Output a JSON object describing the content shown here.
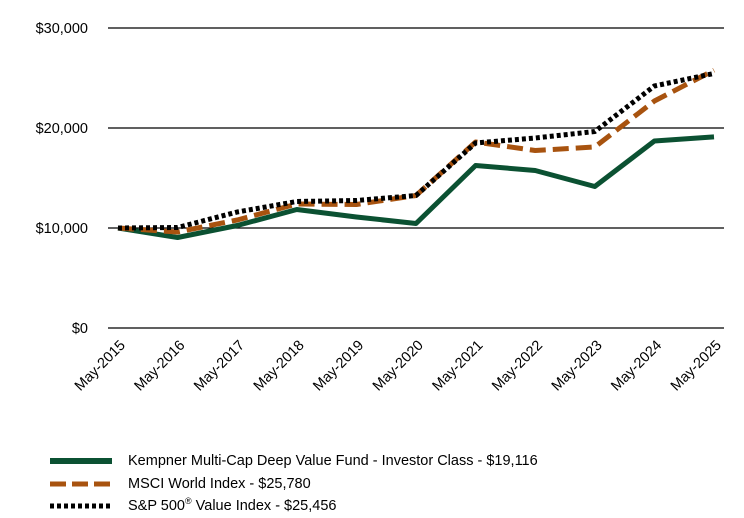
{
  "chart_data": {
    "type": "line",
    "categories": [
      "May-2015",
      "May-2016",
      "May-2017",
      "May-2018",
      "May-2019",
      "May-2020",
      "May-2021",
      "May-2022",
      "May-2023",
      "May-2024",
      "May-2025"
    ],
    "ylim": [
      0,
      30000
    ],
    "yticks": [
      0,
      10000,
      20000,
      30000
    ],
    "ytick_labels": [
      "$0",
      "$10,000",
      "$20,000",
      "$30,000"
    ],
    "grid": "horizontal",
    "legend_position": "bottom",
    "series": [
      {
        "name": "Kempner Multi-Cap Deep Value Fund - Investor Class - $19,116",
        "color": "#0b5132",
        "style": "solid",
        "values": [
          10000,
          9050,
          10250,
          11850,
          11100,
          10450,
          16250,
          15750,
          14150,
          18700,
          19116
        ]
      },
      {
        "name": "MSCI World Index - $25,780",
        "color": "#a8530f",
        "style": "dashed",
        "values": [
          10000,
          9600,
          10800,
          12400,
          12350,
          13250,
          18600,
          17750,
          18100,
          22700,
          25780
        ]
      },
      {
        "name": "S&P 500® Value Index - $25,456",
        "name_main": "S&P 500",
        "name_sup": "®",
        "name_rest": " Value Index - $25,456",
        "color": "#000000",
        "style": "dotted",
        "values": [
          10000,
          10050,
          11600,
          12650,
          12750,
          13250,
          18500,
          19000,
          19650,
          24200,
          25456
        ]
      }
    ]
  }
}
